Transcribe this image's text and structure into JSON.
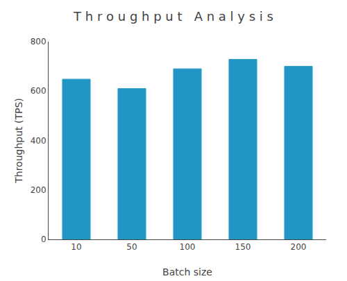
{
  "chart_data": {
    "type": "bar",
    "title": "T h r o u g h p u t   A n a l y s i s",
    "xlabel": "Batch size",
    "ylabel": "Throughput (TPS)",
    "categories": [
      "10",
      "50",
      "100",
      "150",
      "200"
    ],
    "values": [
      648,
      610,
      690,
      728,
      700
    ],
    "color": "#2196c4",
    "ylim": [
      0,
      800
    ],
    "yticks": [
      0,
      200,
      400,
      600,
      800
    ],
    "grid": false
  }
}
